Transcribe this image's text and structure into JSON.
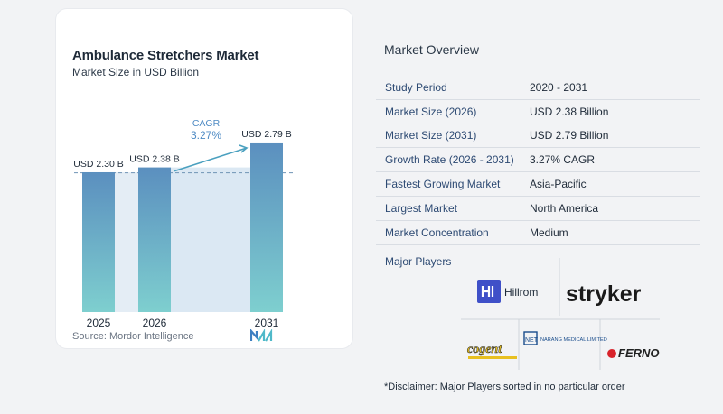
{
  "chart_data": {
    "type": "bar",
    "title": "Ambulance Stretchers Market",
    "subtitle": "Market Size in USD Billion",
    "categories": [
      "2025",
      "2026",
      "2031"
    ],
    "values": [
      2.3,
      2.38,
      2.79
    ],
    "value_labels": [
      "USD 2.30 B",
      "USD 2.38 B",
      "USD 2.79 B"
    ],
    "cagr_label": "CAGR",
    "cagr_value": "3.27%",
    "source": "Source:  Mordor Intelligence",
    "colors": {
      "bar_top": "#5b8fbf",
      "bar_bottom": "#7ecfcf",
      "band": "#dbe8f3",
      "arrow": "#4aa0bf",
      "cagr_text": "#4f8bc4"
    }
  },
  "overview": {
    "title": "Market Overview",
    "rows": [
      {
        "key": "Study Period",
        "value": "2020 - 2031"
      },
      {
        "key": "Market Size (2026)",
        "value": "USD 2.38 Billion"
      },
      {
        "key": "Market Size (2031)",
        "value": "USD 2.79 Billion"
      },
      {
        "key": "Growth Rate (2026 - 2031)",
        "value": "3.27% CAGR"
      },
      {
        "key": "Fastest Growing Market",
        "value": "Asia-Pacific"
      },
      {
        "key": "Largest Market",
        "value": "North America"
      },
      {
        "key": "Market Concentration",
        "value": "Medium"
      }
    ],
    "players_title": "Major Players",
    "players": [
      "Hillrom",
      "stryker",
      "cogent",
      "NARANG MEDICAL LIMITED",
      "FERNO"
    ],
    "disclaimer": "*Disclaimer: Major Players sorted in no particular order"
  }
}
